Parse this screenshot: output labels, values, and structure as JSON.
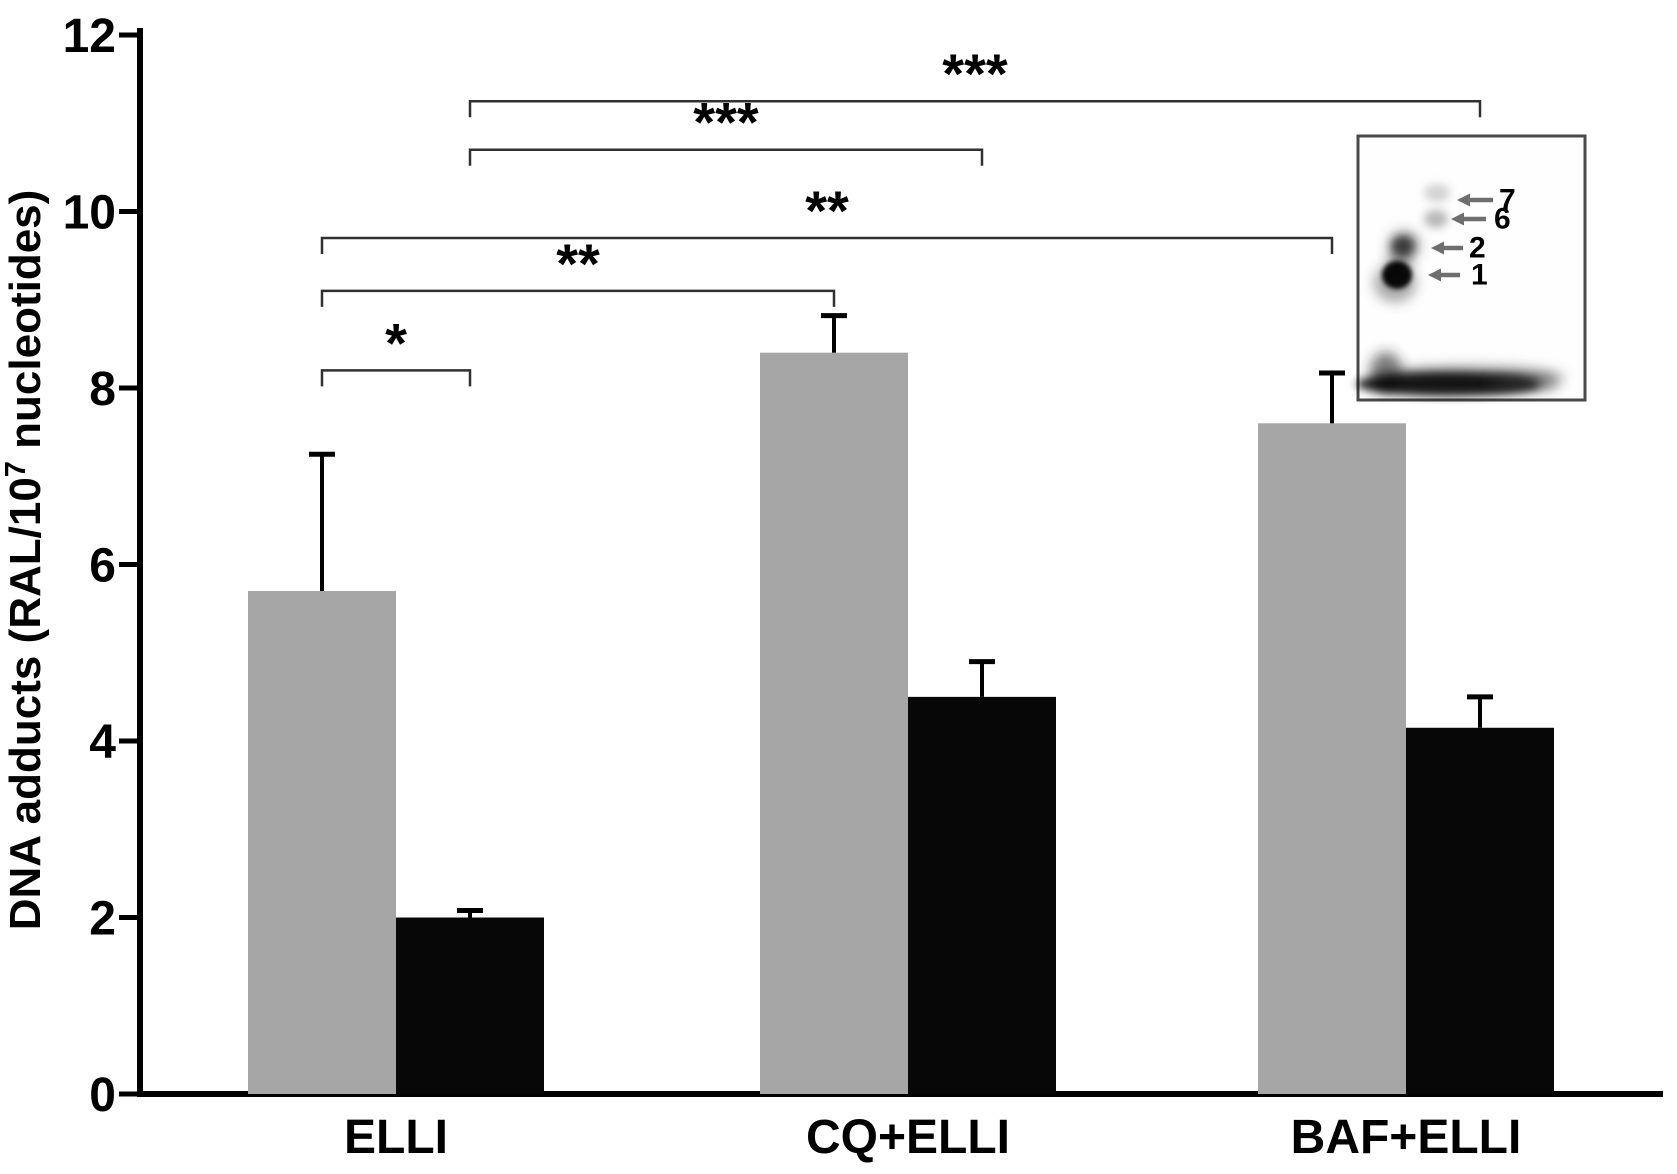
{
  "chart_data": {
    "type": "bar",
    "title": "",
    "ylabel": {
      "prefix": "DNA adducts (RAL/10",
      "superscript": "7",
      "suffix": " nucleotides)"
    },
    "xlabel": "",
    "categories": [
      "ELLI",
      "CQ+ELLI",
      "BAF+ELLI"
    ],
    "series": [
      {
        "name": "gray-bars",
        "color": "#a6a6a6",
        "values": [
          5.7,
          8.4,
          7.6
        ],
        "errors_plus": [
          1.55,
          0.42,
          0.57
        ]
      },
      {
        "name": "black-bars",
        "color": "#070707",
        "values": [
          2.0,
          4.5,
          4.15
        ],
        "errors_plus": [
          0.08,
          0.4,
          0.35
        ]
      }
    ],
    "ylim": [
      0,
      12
    ],
    "yticks": [
      "0",
      "2",
      "4",
      "6",
      "8",
      "10",
      "12"
    ],
    "grid": false,
    "legend": "none",
    "significance_brackets": [
      {
        "label": "*",
        "from_category": 0,
        "from_series": 0,
        "to_category": 0,
        "to_series": 1,
        "y": 8.2
      },
      {
        "label": "**",
        "from_category": 0,
        "from_series": 0,
        "to_category": 1,
        "to_series": 0,
        "y": 9.1
      },
      {
        "label": "**",
        "from_category": 0,
        "from_series": 0,
        "to_category": 2,
        "to_series": 0,
        "y": 9.7
      },
      {
        "label": "***",
        "from_category": 0,
        "from_series": 1,
        "to_category": 1,
        "to_series": 1,
        "y": 10.7
      },
      {
        "label": "***",
        "from_category": 0,
        "from_series": 1,
        "to_category": 2,
        "to_series": 1,
        "y": 11.25
      }
    ]
  },
  "inset": {
    "spot_labels": [
      "7",
      "6",
      "2",
      "1"
    ]
  }
}
